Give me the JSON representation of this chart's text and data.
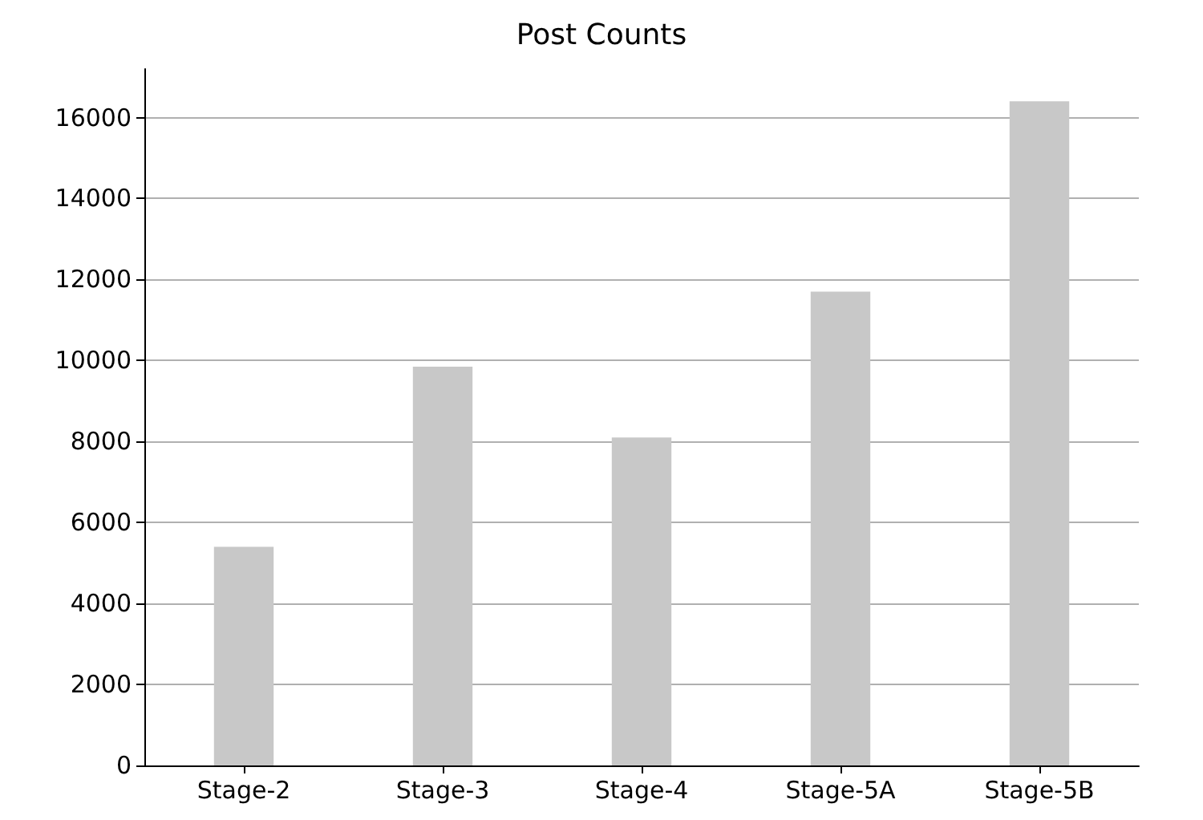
{
  "chart_data": {
    "type": "bar",
    "title": "Post Counts",
    "categories": [
      "Stage-2",
      "Stage-3",
      "Stage-4",
      "Stage-5A",
      "Stage-5B"
    ],
    "values": [
      5400,
      9850,
      8100,
      11700,
      16400
    ],
    "color": "#c8c8c8",
    "ylim": [
      0,
      17200
    ],
    "yticks": [
      0,
      2000,
      4000,
      6000,
      8000,
      10000,
      12000,
      14000,
      16000
    ],
    "grid": "y"
  }
}
